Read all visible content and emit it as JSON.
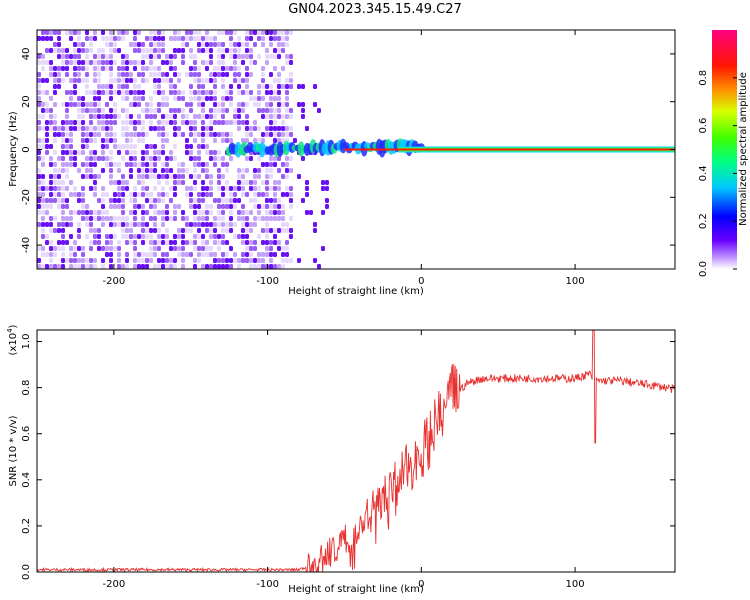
{
  "title": "GN04.2023.345.15.49.C27",
  "colors": {
    "snr_line": "#e8302e",
    "spec_base": "#7a1cff",
    "core_line": "#ff1a00"
  },
  "chart_data": [
    {
      "type": "heatmap",
      "xlabel": "Height of straight line (km)",
      "ylabel": "Frequency (Hz)",
      "xlim": [
        -250,
        165
      ],
      "ylim": [
        -50,
        50
      ],
      "xticks": [
        -200,
        -100,
        0,
        100
      ],
      "yticks": [
        -40,
        -20,
        0,
        20,
        40
      ],
      "colorbar": {
        "label": "Normalized spectral amplitude",
        "range": [
          0,
          1
        ],
        "ticks": [
          "0.0",
          "0.2",
          "0.4",
          "0.6",
          "0.8"
        ],
        "colormap": "rainbow"
      },
      "features": {
        "noise_region_x": [
          -250,
          -65
        ],
        "signal_onset_x": -125,
        "signal_line_frequency": 0
      }
    },
    {
      "type": "line",
      "xlabel": "Height of straight line (km)",
      "ylabel": "SNR (10 * v/v)",
      "scale_label": "(x10",
      "scale_exp": "4",
      "scale_close": ")",
      "xlim": [
        -250,
        165
      ],
      "ylim": [
        0,
        1.05
      ],
      "xticks": [
        -200,
        -100,
        0,
        100
      ],
      "yticks": [
        "0.0",
        "0.2",
        "0.4",
        "0.6",
        "0.8",
        "1.0"
      ],
      "series": [
        {
          "x": [
            -250,
            -200,
            -150,
            -100,
            -80,
            -70,
            -60,
            -50,
            -40,
            -30,
            -20,
            -10,
            0,
            10,
            20,
            30,
            40,
            50,
            60,
            70,
            80,
            90,
            100,
            105,
            110,
            112,
            115,
            120,
            130,
            140,
            150,
            160,
            165
          ],
          "y": [
            0.01,
            0.01,
            0.01,
            0.01,
            0.01,
            0.03,
            0.08,
            0.14,
            0.2,
            0.28,
            0.36,
            0.44,
            0.52,
            0.63,
            0.76,
            0.82,
            0.84,
            0.84,
            0.84,
            0.84,
            0.84,
            0.84,
            0.84,
            0.85,
            0.86,
            0.83,
            0.83,
            0.83,
            0.83,
            0.82,
            0.81,
            0.8,
            0.79
          ]
        }
      ],
      "annotations": {
        "spike_x": 112,
        "spike_max": 1.05,
        "spike_min": 0.56
      }
    }
  ]
}
